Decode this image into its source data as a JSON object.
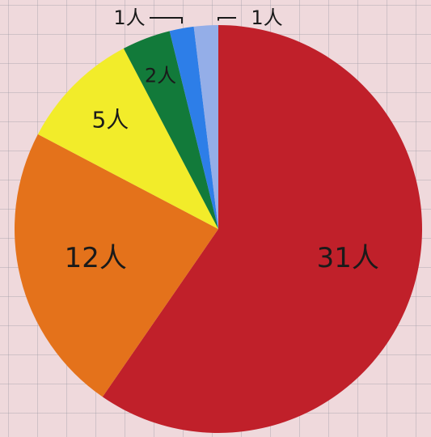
{
  "chart_data": {
    "type": "pie",
    "title": "",
    "legend": "none",
    "slices": [
      {
        "value": 31,
        "label": "31人",
        "color": "#c0202a"
      },
      {
        "value": 12,
        "label": "12人",
        "color": "#e4721b"
      },
      {
        "value": 5,
        "label": "5人",
        "color": "#f2ec2a"
      },
      {
        "value": 2,
        "label": "2人",
        "color": "#127a3a"
      },
      {
        "value": 1,
        "label": "1人",
        "color": "#2d7ee8"
      },
      {
        "value": 1,
        "label": "1人",
        "color": "#94aee8"
      }
    ]
  }
}
